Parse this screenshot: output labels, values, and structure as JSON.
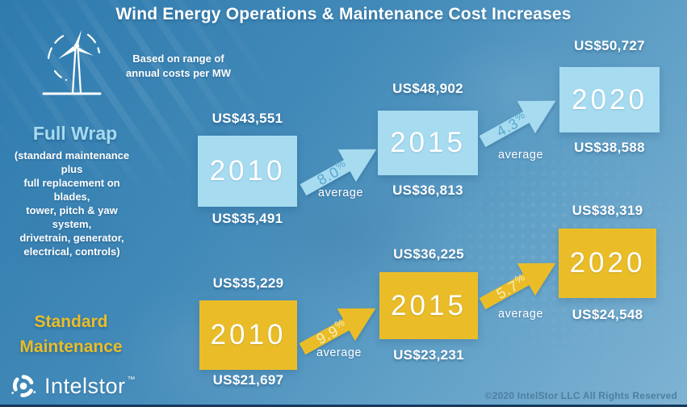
{
  "title": "Wind Energy Operations & Maintenance Cost Increases",
  "note": "Based on range of\nannual costs per MW",
  "colors": {
    "bg_top": "#2e7bae",
    "bg_bottom": "#7fb3d3",
    "light_blue": "#a6dbf0",
    "yellow": "#eabd28",
    "title_text": "#ffffff",
    "copyright_text": "#4d7fa0"
  },
  "groups": [
    {
      "label": "Full Wrap",
      "description": "(standard maintenance plus\nfull replacement on blades,\ntower, pitch & yaw system,\ndrivetrain, generator,\nelectrical, controls)",
      "steps": [
        {
          "year": "2010",
          "high": "US$43,551",
          "low": "US$35,491"
        },
        {
          "year": "2015",
          "high": "US$48,902",
          "low": "US$36,813"
        },
        {
          "year": "2020",
          "high": "US$50,727",
          "low": "US$38,588"
        }
      ],
      "arrows": [
        {
          "pct": "8.0%",
          "label": "average"
        },
        {
          "pct": "4.3%",
          "label": "average"
        }
      ]
    },
    {
      "label": "Standard\nMaintenance",
      "steps": [
        {
          "year": "2010",
          "high": "US$35,229",
          "low": "US$21,697"
        },
        {
          "year": "2015",
          "high": "US$36,225",
          "low": "US$23,231"
        },
        {
          "year": "2020",
          "high": "US$38,319",
          "low": "US$24,548"
        }
      ],
      "arrows": [
        {
          "pct": "9.9%",
          "label": "average"
        },
        {
          "pct": "5.7%",
          "label": "average"
        }
      ]
    }
  ],
  "footer": {
    "brand": "Intelstor",
    "trademark": "™",
    "copyright": "©2020 IntelStor LLC  All Rights Reserved"
  },
  "chart_data": {
    "type": "table",
    "title": "Wind Energy Operations & Maintenance Cost Increases",
    "subtitle": "Based on range of annual costs per MW",
    "categories": [
      "2010",
      "2015",
      "2020"
    ],
    "series": [
      {
        "name": "Full Wrap — high of range (US$ per MW)",
        "values": [
          43551,
          48902,
          50727
        ]
      },
      {
        "name": "Full Wrap — low of range (US$ per MW)",
        "values": [
          35491,
          36813,
          38588
        ]
      },
      {
        "name": "Standard Maintenance — high of range (US$ per MW)",
        "values": [
          35229,
          36225,
          38319
        ]
      },
      {
        "name": "Standard Maintenance — low of range (US$ per MW)",
        "values": [
          21697,
          23231,
          24548
        ]
      }
    ],
    "annotations": [
      {
        "series": "Full Wrap",
        "segment": "2010→2015",
        "average_increase": "8.0%"
      },
      {
        "series": "Full Wrap",
        "segment": "2015→2020",
        "average_increase": "4.3%"
      },
      {
        "series": "Standard Maintenance",
        "segment": "2010→2015",
        "average_increase": "9.9%"
      },
      {
        "series": "Standard Maintenance",
        "segment": "2015→2020",
        "average_increase": "5.7%"
      }
    ]
  }
}
